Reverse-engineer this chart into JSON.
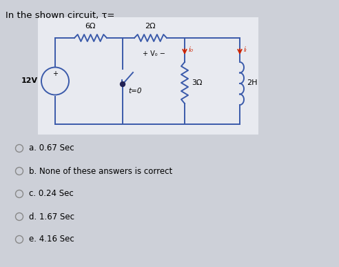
{
  "title": "In the shown circuit, τ=",
  "title_fontsize": 9.5,
  "bg_color": "#cdd0d8",
  "circuit_bg": "#e8eaf0",
  "circuit_border": "#3a5aaa",
  "options": [
    "a. 0.67 Sec",
    "b. None of these answers is correct",
    "c. 0.24 Sec",
    "d. 1.67 Sec",
    "e. 4.16 Sec"
  ],
  "option_fontsize": 8.5,
  "circuit_labels": {
    "r1": "6Ω",
    "r2": "2Ω",
    "source": "12V",
    "switch": "t=0",
    "r3": "3Ω",
    "inductor": "2H",
    "vx": "+ V₀ −",
    "ix": "i₀",
    "il": "iₗ"
  }
}
